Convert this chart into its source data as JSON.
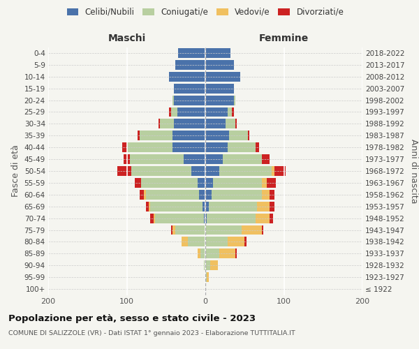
{
  "age_groups": [
    "100+",
    "95-99",
    "90-94",
    "85-89",
    "80-84",
    "75-79",
    "70-74",
    "65-69",
    "60-64",
    "55-59",
    "50-54",
    "45-49",
    "40-44",
    "35-39",
    "30-34",
    "25-29",
    "20-24",
    "15-19",
    "10-14",
    "5-9",
    "0-4"
  ],
  "birth_years": [
    "≤ 1922",
    "1923-1927",
    "1928-1932",
    "1933-1937",
    "1938-1942",
    "1943-1947",
    "1948-1952",
    "1953-1957",
    "1958-1962",
    "1963-1967",
    "1968-1972",
    "1973-1977",
    "1978-1982",
    "1983-1987",
    "1988-1992",
    "1993-1997",
    "1998-2002",
    "2003-2007",
    "2008-2012",
    "2013-2017",
    "2018-2022"
  ],
  "males": {
    "celibe": [
      0,
      0,
      0,
      0,
      0,
      0,
      2,
      4,
      8,
      10,
      18,
      28,
      42,
      42,
      40,
      36,
      40,
      40,
      46,
      38,
      35
    ],
    "coniugato": [
      0,
      0,
      2,
      6,
      22,
      38,
      62,
      66,
      68,
      72,
      76,
      68,
      58,
      42,
      18,
      8,
      2,
      0,
      0,
      0,
      0
    ],
    "vedovo": [
      0,
      0,
      0,
      4,
      8,
      4,
      2,
      2,
      2,
      0,
      0,
      0,
      0,
      0,
      0,
      0,
      0,
      0,
      0,
      0,
      0
    ],
    "divorziato": [
      0,
      0,
      0,
      0,
      0,
      2,
      4,
      4,
      6,
      8,
      18,
      8,
      6,
      2,
      2,
      2,
      0,
      0,
      0,
      0,
      0
    ]
  },
  "females": {
    "nubile": [
      0,
      0,
      0,
      0,
      0,
      0,
      2,
      4,
      8,
      10,
      18,
      22,
      28,
      30,
      26,
      28,
      36,
      36,
      44,
      36,
      32
    ],
    "coniugata": [
      0,
      2,
      6,
      18,
      28,
      46,
      62,
      62,
      64,
      62,
      66,
      50,
      36,
      24,
      12,
      6,
      2,
      0,
      0,
      0,
      0
    ],
    "vedova": [
      0,
      2,
      10,
      20,
      22,
      26,
      18,
      16,
      10,
      6,
      4,
      0,
      0,
      0,
      0,
      0,
      0,
      0,
      0,
      0,
      0
    ],
    "divorziata": [
      0,
      0,
      0,
      2,
      2,
      2,
      4,
      6,
      6,
      12,
      14,
      10,
      4,
      2,
      2,
      2,
      0,
      0,
      0,
      0,
      0
    ]
  },
  "colors": {
    "celibe": "#4a72aa",
    "coniugato": "#b8cfa0",
    "vedovo": "#f0c060",
    "divorziato": "#cc2222"
  },
  "xlim": 200,
  "title": "Popolazione per età, sesso e stato civile - 2023",
  "subtitle": "COMUNE DI SALIZZOLE (VR) - Dati ISTAT 1° gennaio 2023 - Elaborazione TUTTITALIA.IT",
  "ylabel_left": "Fasce di età",
  "ylabel_right": "Anni di nascita",
  "xlabel_left": "Maschi",
  "xlabel_right": "Femmine",
  "legend_labels": [
    "Celibi/Nubili",
    "Coniugati/e",
    "Vedovi/e",
    "Divorziati/e"
  ],
  "bg_color": "#f5f5f0"
}
